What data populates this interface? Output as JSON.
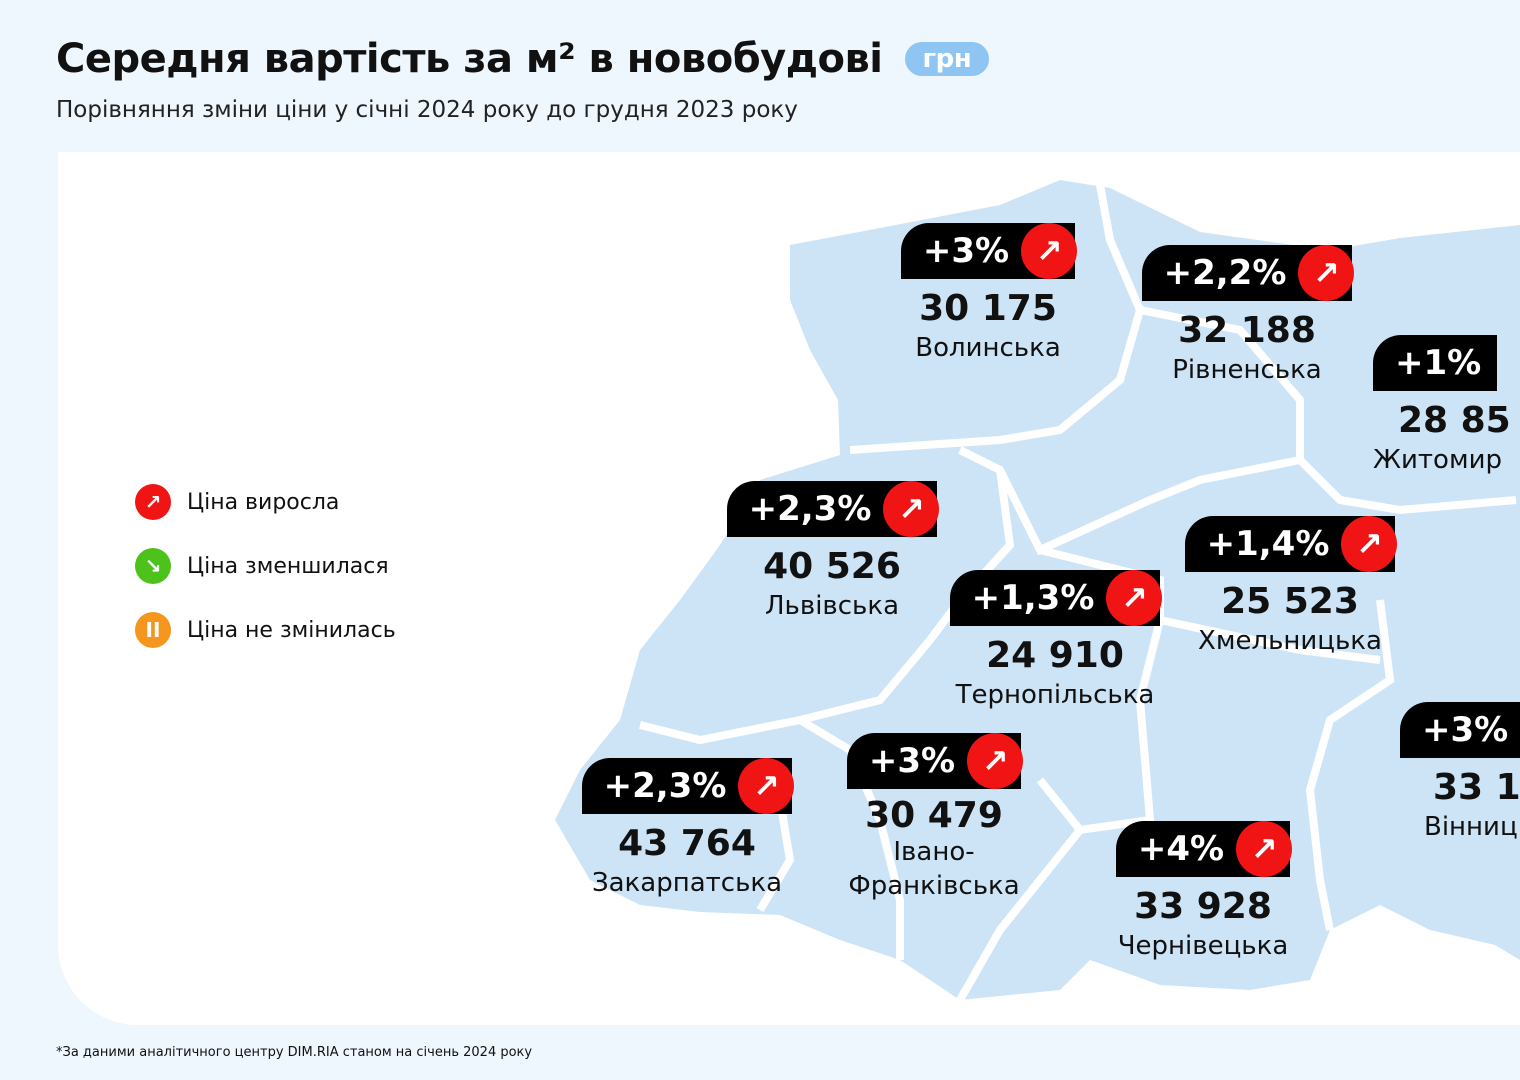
{
  "header": {
    "title": "Середня вартість за м² в новобудові",
    "unit": "грн",
    "subtitle": "Порівняння зміни ціни у січні 2024 року до грудня 2023 року"
  },
  "legend": [
    {
      "label": "Ціна виросла",
      "color": "#f01414",
      "icon": "arrow-up-right-icon"
    },
    {
      "label": "Ціна зменшилася",
      "color": "#4cc21a",
      "icon": "arrow-down-right-icon"
    },
    {
      "label": "Ціна не змінилась",
      "color": "#f5961e",
      "icon": "pause-icon"
    }
  ],
  "regions": [
    {
      "name": "Волинська",
      "change": "+3%",
      "price": "30 175",
      "trend": "up"
    },
    {
      "name": "Рівненська",
      "change": "+2,2%",
      "price": "32 188",
      "trend": "up"
    },
    {
      "name": "Житомир",
      "change": "+1%",
      "price": "28 85",
      "trend": "up"
    },
    {
      "name": "Львівська",
      "change": "+2,3%",
      "price": "40 526",
      "trend": "up"
    },
    {
      "name": "Тернопільська",
      "change": "+1,3%",
      "price": "24 910",
      "trend": "up"
    },
    {
      "name": "Хмельницька",
      "change": "+1,4%",
      "price": "25 523",
      "trend": "up"
    },
    {
      "name": "Вінниц",
      "change": "+3%",
      "price": "33 1",
      "trend": "up"
    },
    {
      "name": "Закарпатська",
      "change": "+2,3%",
      "price": "43 764",
      "trend": "up"
    },
    {
      "name": "Івано-Франківська",
      "name_line1": "Івано-",
      "name_line2": "Франківська",
      "change": "+3%",
      "price": "30 479",
      "trend": "up"
    },
    {
      "name": "Чернівецька",
      "change": "+4%",
      "price": "33 928",
      "trend": "up"
    }
  ],
  "colors": {
    "map": "#cde4f7",
    "up": "#f01414",
    "down": "#4cc21a",
    "same": "#f5961e",
    "unit_badge": "#8ec5f2"
  },
  "footnote": "*За даними аналітичного центру DIM.RIA станом на січень 2024 року"
}
